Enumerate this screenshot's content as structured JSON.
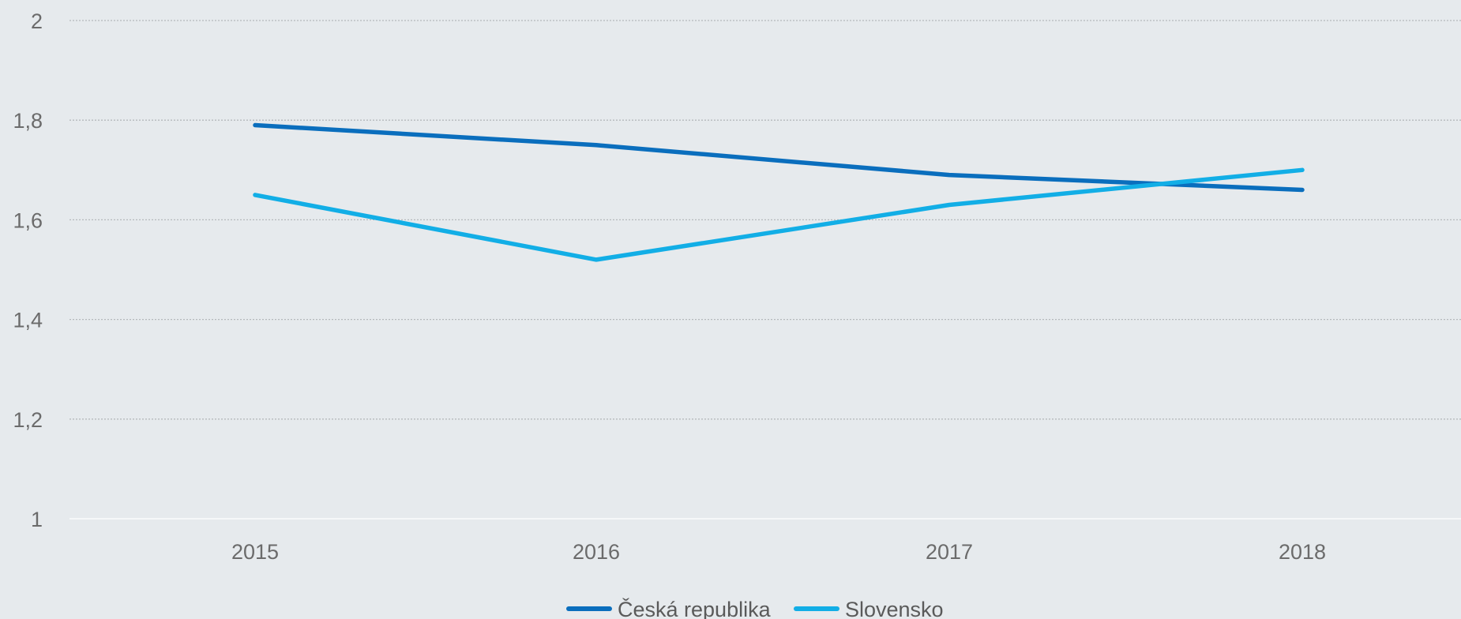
{
  "chart_data": {
    "type": "line",
    "categories": [
      "2015",
      "2016",
      "2017",
      "2018"
    ],
    "series": [
      {
        "name": "Česká republika",
        "values": [
          1.79,
          1.75,
          1.69,
          1.66
        ]
      },
      {
        "name": "Slovensko",
        "values": [
          1.65,
          1.52,
          1.63,
          1.7
        ]
      }
    ],
    "y_ticks": [
      "2",
      "1,8",
      "1,6",
      "1,4",
      "1,2",
      "1"
    ],
    "ylim": [
      1,
      2
    ],
    "grid": true,
    "legend_position": "bottom",
    "colors": {
      "Česká republika": "#0a6ebd",
      "Slovensko": "#12aee6"
    }
  }
}
